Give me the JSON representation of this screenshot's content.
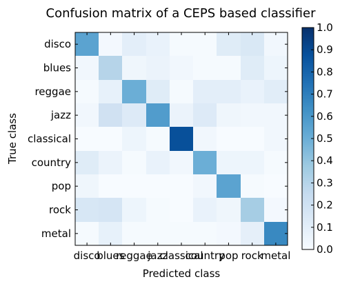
{
  "chart_data": {
    "type": "heatmap",
    "title": "Confusion matrix of a CEPS based classifier",
    "xlabel": "Predicted class",
    "ylabel": "True class",
    "x_categories": [
      "disco",
      "blues",
      "reggae",
      "jazz",
      "classical",
      "country",
      "pop",
      "rock",
      "metal"
    ],
    "y_categories": [
      "disco",
      "blues",
      "reggae",
      "jazz",
      "classical",
      "country",
      "pop",
      "rock",
      "metal"
    ],
    "values": [
      [
        0.55,
        0.02,
        0.1,
        0.07,
        0.01,
        0.01,
        0.12,
        0.15,
        0.03
      ],
      [
        0.03,
        0.3,
        0.04,
        0.06,
        0.03,
        0.01,
        0.01,
        0.12,
        0.05
      ],
      [
        0.01,
        0.08,
        0.5,
        0.12,
        0.01,
        0.1,
        0.1,
        0.07,
        0.11
      ],
      [
        0.03,
        0.2,
        0.13,
        0.58,
        0.06,
        0.13,
        0.04,
        0.03,
        0.03
      ],
      [
        0.0,
        0.0,
        0.05,
        0.01,
        0.88,
        0.03,
        0.0,
        0.0,
        0.03
      ],
      [
        0.12,
        0.06,
        0.01,
        0.07,
        0.03,
        0.5,
        0.05,
        0.05,
        0.01
      ],
      [
        0.04,
        0.0,
        0.0,
        0.0,
        0.0,
        0.03,
        0.55,
        0.01,
        0.0
      ],
      [
        0.16,
        0.17,
        0.05,
        0.01,
        0.0,
        0.07,
        0.04,
        0.35,
        0.02
      ],
      [
        0.01,
        0.08,
        0.01,
        0.01,
        0.01,
        0.01,
        0.02,
        0.09,
        0.66
      ]
    ],
    "colorbar": {
      "range": [
        0.0,
        1.0
      ],
      "ticks": [
        "0.0",
        "0.1",
        "0.2",
        "0.3",
        "0.4",
        "0.5",
        "0.6",
        "0.7",
        "0.8",
        "0.9",
        "1.0"
      ],
      "colormap": "Blues",
      "color_low": "#f7fbff",
      "color_high": "#08306b"
    },
    "grid": false
  }
}
